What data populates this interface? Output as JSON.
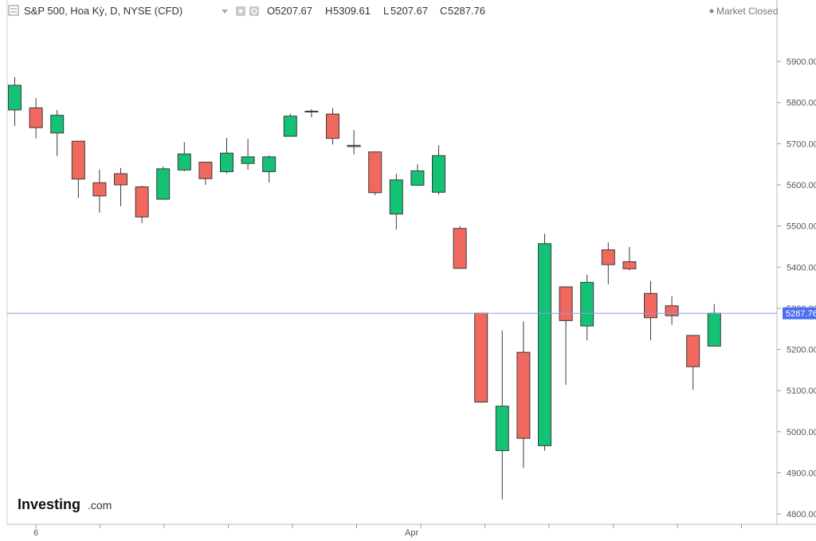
{
  "header": {
    "symbol_title": "S&P 500, Hoa Kỳ, D, NYSE (CFD)",
    "ohlc": [
      {
        "label": "O",
        "value": "5207.67"
      },
      {
        "label": "H",
        "value": "5309.61"
      },
      {
        "label": "L",
        "value": "5207.67"
      },
      {
        "label": "C",
        "value": "5287.76"
      }
    ],
    "status": "Market Closed"
  },
  "brand": {
    "name": "Investing",
    "suffix": ".com"
  },
  "last_price_label": "5287.76",
  "colors": {
    "up": "#14c275",
    "down": "#f1685f",
    "price_line": "#8f96ee",
    "price_tag": "#4c6ef5",
    "grid": "#dcdcdc"
  },
  "chart_data": {
    "type": "candlestick",
    "y_axis": {
      "ticks": [
        4800,
        4900,
        5000,
        5100,
        5200,
        5300,
        5400,
        5500,
        5600,
        5700,
        5800,
        5900
      ],
      "tick_labels": [
        "4800.00",
        "4900.00",
        "5000.00",
        "5100.00",
        "5200.00",
        "5300.00",
        "5400.00",
        "5500.00",
        "5600.00",
        "5700.00",
        "5800.00",
        "5900.00"
      ],
      "range": [
        4775,
        5995
      ]
    },
    "x_axis": {
      "labels": [
        "6",
        "Apr"
      ]
    },
    "last_price": 5287.76,
    "candles": [
      {
        "o": 5782,
        "h": 5862,
        "l": 5743,
        "c": 5842
      },
      {
        "o": 5787,
        "h": 5811,
        "l": 5713,
        "c": 5739
      },
      {
        "o": 5726,
        "h": 5782,
        "l": 5670,
        "c": 5769
      },
      {
        "o": 5706,
        "h": 5706,
        "l": 5568,
        "c": 5614
      },
      {
        "o": 5605,
        "h": 5637,
        "l": 5532,
        "c": 5573
      },
      {
        "o": 5627,
        "h": 5641,
        "l": 5548,
        "c": 5600
      },
      {
        "o": 5595,
        "h": 5598,
        "l": 5507,
        "c": 5522
      },
      {
        "o": 5565,
        "h": 5645,
        "l": 5565,
        "c": 5639
      },
      {
        "o": 5636,
        "h": 5704,
        "l": 5633,
        "c": 5675
      },
      {
        "o": 5655,
        "h": 5655,
        "l": 5600,
        "c": 5615
      },
      {
        "o": 5632,
        "h": 5714,
        "l": 5627,
        "c": 5677
      },
      {
        "o": 5652,
        "h": 5712,
        "l": 5637,
        "c": 5668
      },
      {
        "o": 5632,
        "h": 5672,
        "l": 5606,
        "c": 5668
      },
      {
        "o": 5718,
        "h": 5773,
        "l": 5718,
        "c": 5767
      },
      {
        "o": 5778,
        "h": 5784,
        "l": 5764,
        "c": 5779
      },
      {
        "o": 5772,
        "h": 5786,
        "l": 5698,
        "c": 5713
      },
      {
        "o": 5696,
        "h": 5733,
        "l": 5674,
        "c": 5693
      },
      {
        "o": 5680,
        "h": 5680,
        "l": 5575,
        "c": 5581
      },
      {
        "o": 5529,
        "h": 5627,
        "l": 5491,
        "c": 5612
      },
      {
        "o": 5599,
        "h": 5650,
        "l": 5599,
        "c": 5634
      },
      {
        "o": 5582,
        "h": 5696,
        "l": 5576,
        "c": 5671
      },
      {
        "o": 5494,
        "h": 5500,
        "l": 5397,
        "c": 5397
      },
      {
        "o": 5288,
        "h": 5288,
        "l": 5072,
        "c": 5072
      },
      {
        "o": 4954,
        "h": 5246,
        "l": 4835,
        "c": 5062
      },
      {
        "o": 5193,
        "h": 5268,
        "l": 4912,
        "c": 4984
      },
      {
        "o": 4966,
        "h": 5481,
        "l": 4954,
        "c": 5457
      },
      {
        "o": 5352,
        "h": 5352,
        "l": 5114,
        "c": 5270
      },
      {
        "o": 5257,
        "h": 5382,
        "l": 5222,
        "c": 5363
      },
      {
        "o": 5442,
        "h": 5460,
        "l": 5358,
        "c": 5406
      },
      {
        "o": 5413,
        "h": 5449,
        "l": 5392,
        "c": 5396
      },
      {
        "o": 5336,
        "h": 5366,
        "l": 5222,
        "c": 5277
      },
      {
        "o": 5306,
        "h": 5329,
        "l": 5260,
        "c": 5282
      },
      {
        "o": 5234,
        "h": 5234,
        "l": 5102,
        "c": 5158
      },
      {
        "o": 5208,
        "h": 5310,
        "l": 5208,
        "c": 5288
      }
    ]
  }
}
